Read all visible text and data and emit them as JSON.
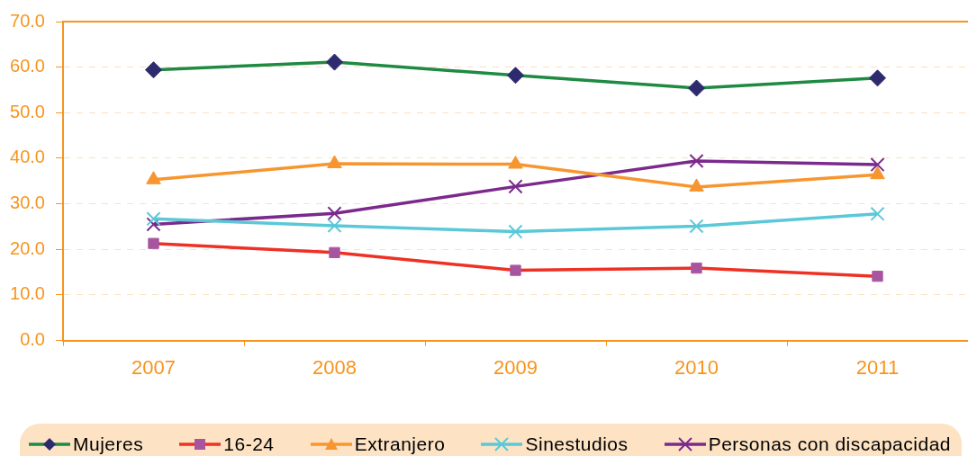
{
  "chart_data": {
    "type": "line",
    "categories": [
      "2007",
      "2008",
      "2009",
      "2010",
      "2011"
    ],
    "series": [
      {
        "name": "Mujeres",
        "color": "#1e8a42",
        "colors": [
          "#2e2a6e",
          "#2e2a6e",
          "#2e2a6e",
          "#2e2a6e",
          "#2e2a6e"
        ],
        "marker": "diamond",
        "values": [
          59.4,
          61.1,
          58.2,
          55.4,
          57.6
        ]
      },
      {
        "name": "16-24",
        "color": "#ee3124",
        "colors": [
          "#a855a0",
          "#a855a0",
          "#a855a0",
          "#a855a0",
          "#a855a0"
        ],
        "marker": "square",
        "values": [
          21.3,
          19.3,
          15.4,
          15.9,
          14.1
        ]
      },
      {
        "name": "Extranjero",
        "color": "#f7962f",
        "marker": "triangle",
        "values": [
          35.3,
          38.8,
          38.7,
          33.7,
          36.4
        ]
      },
      {
        "name": "Sinestudios",
        "color": "#5bc8d8",
        "marker": "cross",
        "values": [
          26.7,
          25.2,
          23.9,
          25.1,
          27.8
        ]
      },
      {
        "name": "Personas con discapacidad",
        "color": "#7b2a8c",
        "marker": "cross",
        "values": [
          25.5,
          27.9,
          33.8,
          39.4,
          38.6
        ]
      }
    ],
    "ylim": [
      0,
      70
    ],
    "yticks": [
      {
        "value": 0,
        "label": "0.0"
      },
      {
        "value": 10,
        "label": "10.0"
      },
      {
        "value": 20,
        "label": "20.0"
      },
      {
        "value": 30,
        "label": "30.0"
      },
      {
        "value": 40,
        "label": "40.0"
      },
      {
        "value": 50,
        "label": "50.0"
      },
      {
        "value": 60,
        "label": "60.0"
      },
      {
        "value": 70,
        "label": "70.0"
      }
    ],
    "grid": "y",
    "legend": "bottom"
  }
}
